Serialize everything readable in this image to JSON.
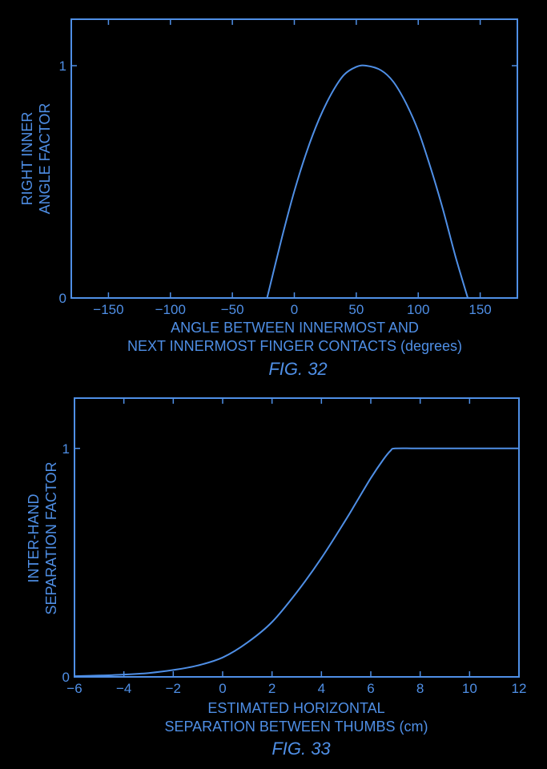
{
  "colors": {
    "background": "#000000",
    "ink": "#4f8fe6"
  },
  "chart_data": [
    {
      "type": "line",
      "figure_label": "FIG. 32",
      "ylabel_lines": [
        "RIGHT INNER",
        "ANGLE FACTOR"
      ],
      "xlabel_lines": [
        "ANGLE BETWEEN INNERMOST AND",
        "NEXT INNERMOST FINGER CONTACTS (degrees)"
      ],
      "xlim": [
        -180,
        180
      ],
      "ylim": [
        0,
        1.2
      ],
      "xticks": [
        -150,
        -100,
        -50,
        0,
        50,
        100,
        150
      ],
      "xtick_labels": [
        "−150",
        "−100",
        "−50",
        "0",
        "50",
        "100",
        "150"
      ],
      "yticks": [
        0,
        1
      ],
      "ytick_labels": [
        "0",
        "1"
      ],
      "grid": false,
      "series": [
        {
          "x": [
            -22,
            -10,
            0,
            10,
            20,
            30,
            40,
            50,
            58,
            70,
            80,
            90,
            100,
            110,
            120,
            130,
            140
          ],
          "y": [
            0,
            0.26,
            0.46,
            0.63,
            0.77,
            0.88,
            0.96,
            0.995,
            1.0,
            0.98,
            0.93,
            0.84,
            0.72,
            0.56,
            0.38,
            0.18,
            0.0
          ]
        }
      ]
    },
    {
      "type": "line",
      "figure_label": "FIG. 33",
      "ylabel_lines": [
        "INTER-HAND",
        "SEPARATION FACTOR"
      ],
      "xlabel_lines": [
        "ESTIMATED HORIZONTAL",
        "SEPARATION BETWEEN THUMBS (cm)"
      ],
      "xlim": [
        -6,
        12
      ],
      "ylim": [
        0,
        1.22
      ],
      "xticks": [
        -6,
        -4,
        -2,
        0,
        2,
        4,
        6,
        8,
        10,
        12
      ],
      "xtick_labels": [
        "−6",
        "−4",
        "−2",
        "0",
        "2",
        "4",
        "6",
        "8",
        "10",
        "12"
      ],
      "yticks": [
        0,
        1
      ],
      "ytick_labels": [
        "0",
        "1"
      ],
      "grid": false,
      "series": [
        {
          "x": [
            -6,
            -5,
            -4,
            -3,
            -2,
            -1,
            0,
            1,
            2,
            3,
            4,
            5,
            5.5,
            6,
            6.5,
            6.8,
            7,
            8,
            9,
            10,
            11,
            12
          ],
          "y": [
            0.003,
            0.006,
            0.01,
            0.017,
            0.03,
            0.05,
            0.085,
            0.15,
            0.24,
            0.37,
            0.52,
            0.69,
            0.78,
            0.87,
            0.95,
            0.99,
            1.0,
            1.0,
            1.0,
            1.0,
            1.0,
            1.0
          ]
        }
      ]
    }
  ]
}
